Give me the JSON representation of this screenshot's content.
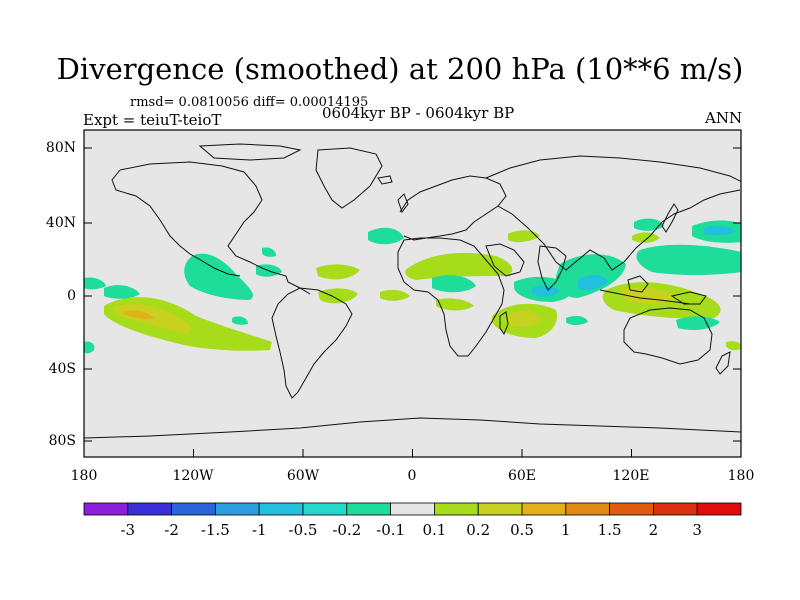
{
  "title": "Divergence (smoothed) at 200 hPa (10**6 m/s)",
  "stats": "rmsd= 0.0810056 diff= 0.00014195",
  "experiment": "Expt = teiuT-teioT",
  "period": "0604kyr BP - 0604kyr BP",
  "season": "ANN",
  "lat_labels": [
    "80N",
    "40N",
    "0",
    "40S",
    "80S"
  ],
  "lon_labels": [
    "180",
    "120W",
    "60W",
    "0",
    "60E",
    "120E",
    "180"
  ],
  "colorbar": {
    "labels": [
      "-3",
      "-2",
      "-1.5",
      "-1",
      "-0.5",
      "-0.2",
      "-0.1",
      "0.1",
      "0.2",
      "0.5",
      "1",
      "1.5",
      "2",
      "3"
    ],
    "colors": [
      "#8a1fe0",
      "#3a2fd8",
      "#2a66d8",
      "#2a9ee0",
      "#22c0dc",
      "#24d8cc",
      "#1edc9a",
      "#e6e6e6",
      "#a6dc1a",
      "#c8d020",
      "#e2b018",
      "#e08a14",
      "#e05c10",
      "#dc3010",
      "#e00c0c"
    ]
  }
}
